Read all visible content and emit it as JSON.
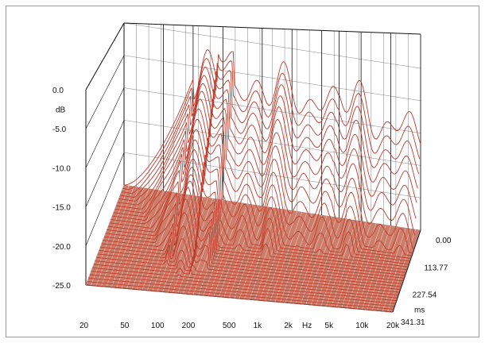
{
  "chart_data": {
    "type": "waterfall",
    "title": "",
    "ylabel": "dB",
    "xlabel": "Hz",
    "zlabel": "ms",
    "x_axis": {
      "scale": "log",
      "tick_labels": [
        "20",
        "50",
        "100",
        "200",
        "500",
        "1k",
        "2k",
        "Hz",
        "5k",
        "10k",
        "20k"
      ],
      "tick_values": [
        20,
        50,
        100,
        200,
        500,
        1000,
        2000,
        3000,
        5000,
        10000,
        20000
      ],
      "range": [
        20,
        20000
      ]
    },
    "y_axis": {
      "tick_labels": [
        "0.0",
        "-5.0",
        "-10.0",
        "-15.0",
        "-20.0",
        "-25.0"
      ],
      "tick_values": [
        0,
        -5,
        -10,
        -15,
        -20,
        -25
      ],
      "range": [
        -25,
        0
      ]
    },
    "z_axis": {
      "tick_labels": [
        "0.00",
        "113.77",
        "227.54",
        "341.31"
      ],
      "tick_values": [
        0.0,
        113.77,
        227.54,
        341.31
      ],
      "range": [
        0,
        341.31
      ],
      "unit": "ms"
    },
    "slices": 30,
    "grid": true,
    "colors": {
      "trace": "#c0392b",
      "floor_fill": "#c8705a",
      "grid": "#111111"
    }
  }
}
